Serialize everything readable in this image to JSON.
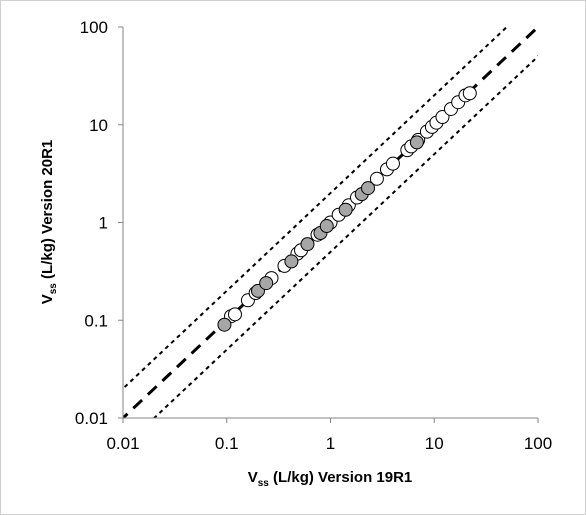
{
  "chart_data": {
    "type": "scatter",
    "title": "",
    "x_scale": "log",
    "y_scale": "log",
    "xlim": [
      0.01,
      100
    ],
    "ylim": [
      0.01,
      100
    ],
    "x_ticks": [
      "0.01",
      "0.1",
      "1",
      "10",
      "100"
    ],
    "y_ticks": [
      "0.01",
      "0.1",
      "1",
      "10",
      "100"
    ],
    "xlabel": {
      "symbol": "V",
      "subscript": "ss",
      "text": " (L/kg) Version 19R1"
    },
    "ylabel": {
      "symbol": "V",
      "subscript": "ss",
      "text": " (L/kg) Version 20R1"
    },
    "grid": false,
    "legend": "none",
    "reference_lines": [
      {
        "style": "long-dash",
        "relation": "y = x"
      },
      {
        "style": "short-dash",
        "relation": "y = 2x"
      },
      {
        "style": "short-dash",
        "relation": "y = 0.5x"
      }
    ],
    "series": [
      {
        "marker_fill": "#ffffff",
        "points": [
          [
            0.11,
            0.11
          ],
          [
            0.12,
            0.115
          ],
          [
            0.16,
            0.16
          ],
          [
            0.19,
            0.19
          ],
          [
            0.27,
            0.27
          ],
          [
            0.36,
            0.36
          ],
          [
            0.48,
            0.48
          ],
          [
            0.52,
            0.52
          ],
          [
            0.75,
            0.75
          ],
          [
            1.0,
            1.0
          ],
          [
            1.2,
            1.2
          ],
          [
            1.5,
            1.5
          ],
          [
            1.8,
            1.8
          ],
          [
            2.8,
            2.8
          ],
          [
            3.5,
            3.5
          ],
          [
            4.0,
            4.0
          ],
          [
            5.5,
            5.5
          ],
          [
            6.0,
            6.0
          ],
          [
            7.0,
            7.0
          ],
          [
            8.5,
            8.5
          ],
          [
            9.5,
            9.5
          ],
          [
            10.5,
            10.5
          ],
          [
            12.0,
            12.0
          ],
          [
            14.5,
            14.5
          ],
          [
            17.0,
            17.0
          ],
          [
            20.0,
            20.0
          ],
          [
            22.0,
            21.0
          ]
        ]
      },
      {
        "marker_fill": "#a6a6a6",
        "points": [
          [
            0.095,
            0.09
          ],
          [
            0.2,
            0.2
          ],
          [
            0.24,
            0.24
          ],
          [
            0.42,
            0.4
          ],
          [
            0.6,
            0.6
          ],
          [
            0.8,
            0.78
          ],
          [
            0.92,
            0.92
          ],
          [
            1.4,
            1.35
          ],
          [
            2.0,
            1.95
          ],
          [
            2.3,
            2.25
          ],
          [
            6.8,
            6.6
          ]
        ]
      }
    ]
  }
}
